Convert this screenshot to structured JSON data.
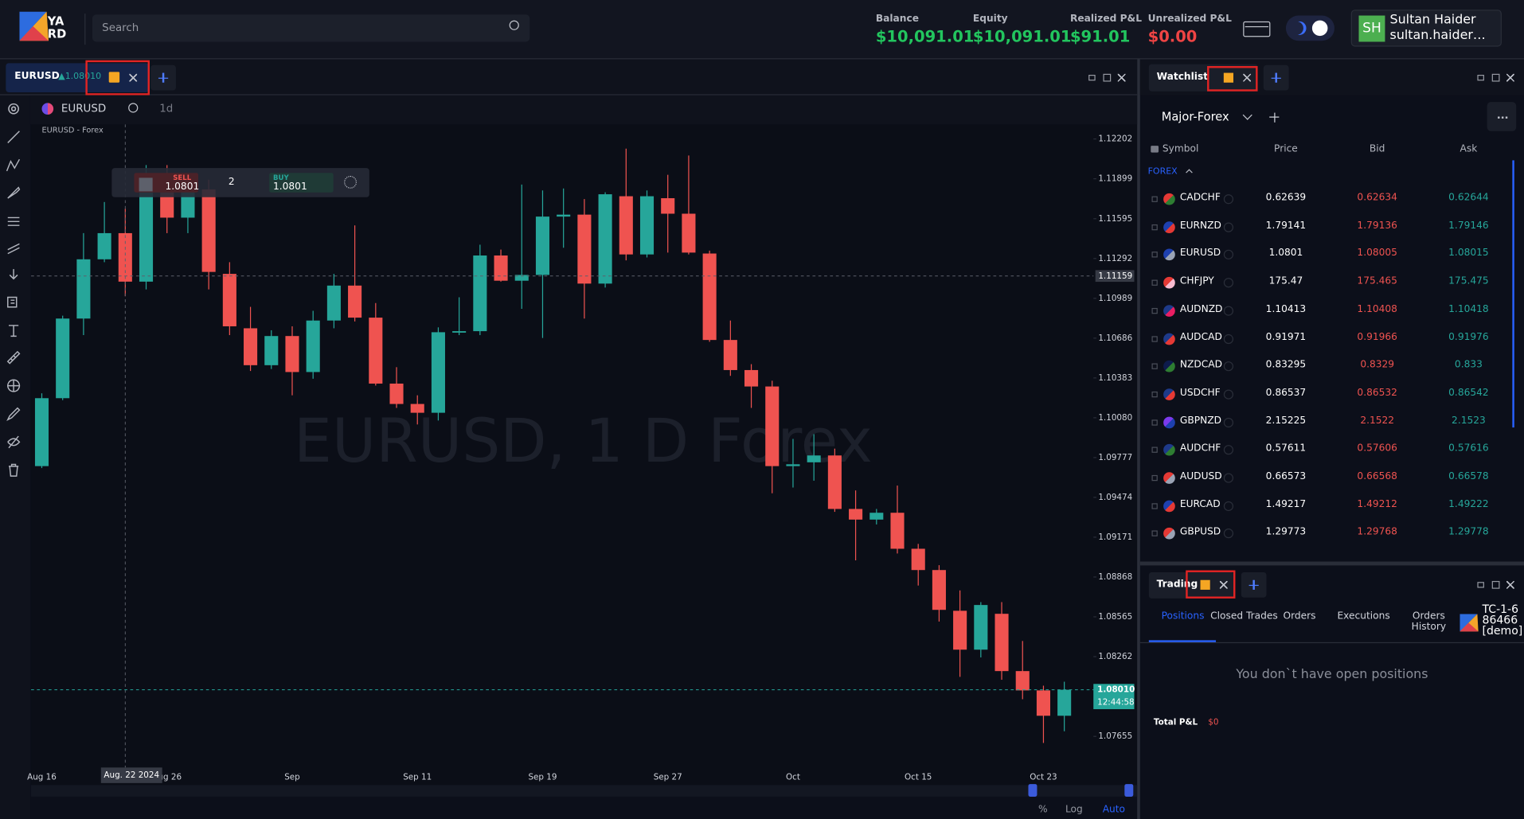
{
  "header": {
    "logo": "YARD",
    "search_placeholder": "Search"
  },
  "account": [
    {
      "label": "Balance",
      "value": "$10,091.01",
      "color": "#22c55e"
    },
    {
      "label": "Equity",
      "value": "$10,091.01",
      "color": "#22c55e"
    },
    {
      "label": "Realized P&L",
      "value": "$91.01",
      "color": "#22c55e"
    },
    {
      "label": "Unrealized P&L",
      "value": "$0.00",
      "color": "#ef4444"
    }
  ],
  "user": {
    "initials": "SH",
    "name": "Sultan Haider",
    "email": "sultan.haider…"
  },
  "chart_tab": {
    "symbol": "EURUSD",
    "change": "▲1.08010"
  },
  "toolbar": {
    "symbol": "EURUSD",
    "interval": "1d"
  },
  "chart_data": {
    "type": "candlestick",
    "title": "EURUSD - Forex",
    "watermark": "EURUSD, 1 D Forex",
    "categories": [
      "Aug 16",
      null,
      null,
      null,
      null,
      null,
      "Aug 26",
      null,
      null,
      null,
      null,
      null,
      "Sep",
      null,
      null,
      null,
      null,
      null,
      "Sep 11",
      null,
      null,
      null,
      null,
      null,
      "Sep 19",
      null,
      null,
      null,
      null,
      null,
      "Sep 27",
      null,
      null,
      null,
      null,
      null,
      "Oct",
      null,
      null,
      null,
      null,
      null,
      "Oct 15",
      null,
      null,
      null,
      null,
      null,
      "Oct 23",
      null
    ],
    "open": [
      1.09712,
      1.10229,
      1.10835,
      1.11286,
      1.11485,
      1.11116,
      1.11929,
      1.11603,
      1.11818,
      1.11175,
      1.10761,
      1.1048,
      1.10702,
      1.10428,
      1.1082,
      1.11086,
      1.10842,
      1.1034,
      1.10185,
      1.10118,
      1.10731,
      1.10739,
      1.11315,
      1.11123,
      1.11167,
      1.11611,
      1.11626,
      1.11101,
      1.11766,
      1.11323,
      1.11751,
      1.11633,
      1.1133,
      1.10672,
      1.10443,
      1.10318,
      1.09712,
      1.09741,
      1.09793,
      1.09386,
      1.09305,
      1.09357,
      1.09083,
      1.08921,
      1.08611,
      1.08315,
      1.08588,
      1.08152,
      1.08005,
      1.07812
    ],
    "high": [
      1.10266,
      1.10857,
      1.11485,
      1.11722,
      1.1167,
      1.12003,
      1.12003,
      1.11929,
      1.11892,
      1.11264,
      1.10924,
      1.10746,
      1.10776,
      1.10894,
      1.11175,
      1.11544,
      1.10953,
      1.10465,
      1.10251,
      1.10768,
      1.10997,
      1.11397,
      1.1136,
      1.11855,
      1.1181,
      1.11825,
      1.11744,
      1.11796,
      1.12128,
      1.1181,
      1.11929,
      1.12076,
      1.11352,
      1.1082,
      1.10488,
      1.10362,
      1.09919,
      1.09955,
      1.09845,
      1.09527,
      1.09386,
      1.09564,
      1.0912,
      1.08958,
      1.08766,
      1.08677,
      1.08677,
      1.08381,
      1.08041,
      1.08071
    ],
    "low": [
      1.09697,
      1.10214,
      1.10709,
      1.11264,
      1.11005,
      1.11057,
      1.11485,
      1.11485,
      1.11057,
      1.10709,
      1.10436,
      1.10451,
      1.10251,
      1.10377,
      1.10761,
      1.10813,
      1.10325,
      1.10155,
      1.10029,
      1.10059,
      1.10709,
      1.10709,
      1.11116,
      1.10909,
      1.10687,
      1.11374,
      1.10835,
      1.11071,
      1.11278,
      1.113,
      1.11337,
      1.11323,
      1.10658,
      1.10399,
      1.10155,
      1.09505,
      1.09549,
      1.09601,
      1.09364,
      1.08995,
      1.09268,
      1.09047,
      1.08803,
      1.08529,
      1.08108,
      1.08256,
      1.08086,
      1.07938,
      1.07605,
      1.07694
    ],
    "close": [
      1.10229,
      1.10835,
      1.11286,
      1.11485,
      1.11116,
      1.11929,
      1.11603,
      1.11855,
      1.1119,
      1.10776,
      1.1048,
      1.10702,
      1.10428,
      1.1082,
      1.11086,
      1.10842,
      1.1034,
      1.10185,
      1.10118,
      1.10731,
      1.10739,
      1.11315,
      1.11123,
      1.11167,
      1.11611,
      1.11626,
      1.11101,
      1.11781,
      1.11323,
      1.11766,
      1.11633,
      1.11337,
      1.10672,
      1.10443,
      1.10318,
      1.09712,
      1.09726,
      1.09793,
      1.09386,
      1.09305,
      1.09357,
      1.09083,
      1.08921,
      1.08618,
      1.08315,
      1.08655,
      1.08152,
      1.08005,
      1.07812,
      1.0801
    ],
    "up_color": "#26a69a",
    "down_color": "#ef5350",
    "ylim": [
      1.07418,
      1.12313
    ],
    "yticks": [
      1.12202,
      1.11899,
      1.11595,
      1.11292,
      1.10989,
      1.10686,
      1.10383,
      {
        "value": 1.1008,
        "label": "1.10080"
      },
      1.09777,
      1.09474,
      1.09171,
      1.08868,
      1.08565,
      1.08262,
      1.07655
    ],
    "grid": false,
    "crosshair": {
      "date": "Aug. 22 2024",
      "price": 1.11159
    },
    "last_price": {
      "value": 1.0801,
      "label": "1.08010",
      "countdown": "12:44:58"
    }
  },
  "order_widget": {
    "sell_label": "SELL",
    "sell_price": "1.0801",
    "quantity": "2",
    "buy_label": "BUY",
    "buy_price": "1.0801"
  },
  "scale_buttons": [
    "%",
    "Log",
    "Auto"
  ],
  "watchlist": {
    "tab": "Watchlist",
    "list_name": "Major-Forex",
    "columns": [
      "Symbol",
      "Price",
      "Bid",
      "Ask"
    ],
    "group": "FOREX",
    "rows": [
      [
        "CADCHF",
        "0.62639",
        "0.62634",
        "0.62644"
      ],
      [
        "EURNZD",
        "1.79141",
        "1.79136",
        "1.79146"
      ],
      [
        "EURUSD",
        "1.0801",
        "1.08005",
        "1.08015"
      ],
      [
        "CHFJPY",
        "175.47",
        "175.465",
        "175.475"
      ],
      [
        "AUDNZD",
        "1.10413",
        "1.10408",
        "1.10418"
      ],
      [
        "AUDCAD",
        "0.91971",
        "0.91966",
        "0.91976"
      ],
      [
        "NZDCAD",
        "0.83295",
        "0.8329",
        "0.833"
      ],
      [
        "USDCHF",
        "0.86537",
        "0.86532",
        "0.86542"
      ],
      [
        "GBPNZD",
        "2.15225",
        "2.1522",
        "2.1523"
      ],
      [
        "AUDCHF",
        "0.57611",
        "0.57606",
        "0.57616"
      ],
      [
        "AUDUSD",
        "0.66573",
        "0.66568",
        "0.66578"
      ],
      [
        "EURCAD",
        "1.49217",
        "1.49212",
        "1.49222"
      ],
      [
        "GBPUSD",
        "1.29773",
        "1.29768",
        "1.29778"
      ]
    ]
  },
  "trading": {
    "tab": "Trading",
    "tabs": [
      "Positions",
      "Closed Trades",
      "Orders",
      "Executions",
      "Orders History"
    ],
    "account": "TC-1-686466 [demo]",
    "empty_message": "You don`t have open positions",
    "total_pnl_label": "Total P&L",
    "total_pnl_value": "$0"
  }
}
